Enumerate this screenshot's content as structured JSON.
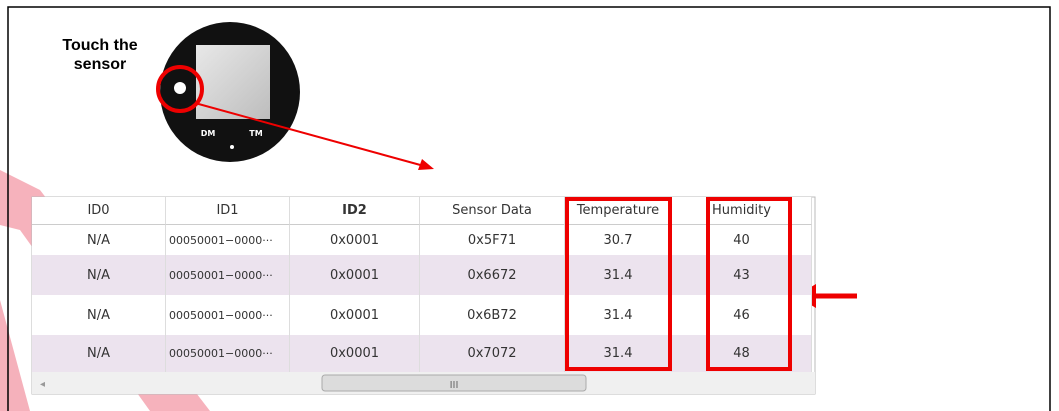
{
  "annotation": "Touch the sensor",
  "device": {
    "labels": [
      "DM",
      "TM"
    ]
  },
  "table": {
    "columns": [
      "ID0",
      "ID1",
      "ID2",
      "Sensor Data",
      "Temperature",
      "Humidity"
    ],
    "rows": [
      [
        "N/A",
        "00050001−0000···",
        "0x0001",
        "0x5F71",
        "30.7",
        "40"
      ],
      [
        "N/A",
        "00050001−0000···",
        "0x0001",
        "0x6672",
        "31.4",
        "43"
      ],
      [
        "N/A",
        "00050001−0000···",
        "0x0001",
        "0x6B72",
        "31.4",
        "46"
      ],
      [
        "N/A",
        "00050001−0000···",
        "0x0001",
        "0x7072",
        "31.4",
        "48"
      ]
    ]
  },
  "scrollbar_label": "III"
}
